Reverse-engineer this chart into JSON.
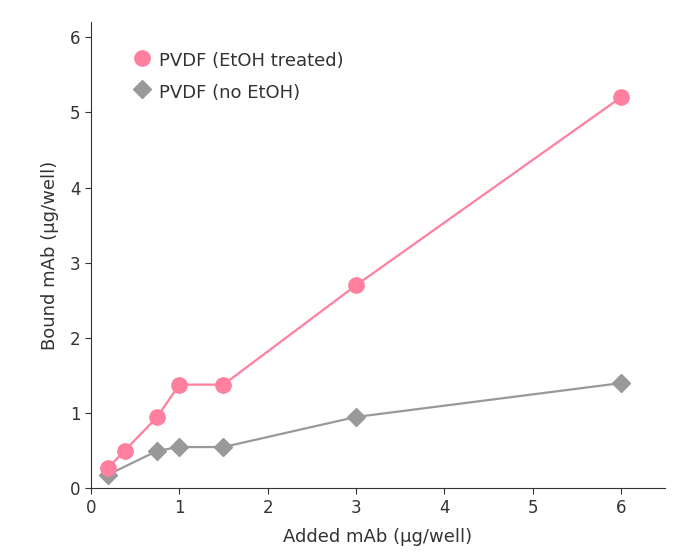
{
  "pvdf_etoh_x": [
    0.19,
    0.38,
    0.75,
    1.0,
    1.5,
    3.0,
    6.0
  ],
  "pvdf_etoh_y": [
    0.27,
    0.5,
    0.95,
    1.38,
    1.38,
    2.7,
    5.2
  ],
  "pvdf_no_etoh_x": [
    0.19,
    0.75,
    1.0,
    1.5,
    3.0,
    6.0
  ],
  "pvdf_no_etoh_y": [
    0.18,
    0.5,
    0.55,
    0.55,
    0.95,
    1.4
  ],
  "pvdf_etoh_color": "#FF7F9E",
  "pvdf_no_etoh_color": "#999999",
  "pvdf_etoh_label": "PVDF (EtOH treated)",
  "pvdf_no_etoh_label": "PVDF (no EtOH)",
  "xlabel": "Added mAb (μg/well)",
  "ylabel": "Bound mAb (μg/well)",
  "xlim": [
    0,
    6.5
  ],
  "ylim": [
    0,
    6.2
  ],
  "xticks": [
    0,
    1,
    2,
    3,
    4,
    5,
    6
  ],
  "yticks": [
    0,
    1,
    2,
    3,
    4,
    5,
    6
  ],
  "marker_size_circle": 11,
  "marker_size_diamond": 9,
  "line_width": 1.6,
  "legend_fontsize": 13,
  "axis_label_fontsize": 13,
  "tick_fontsize": 12
}
